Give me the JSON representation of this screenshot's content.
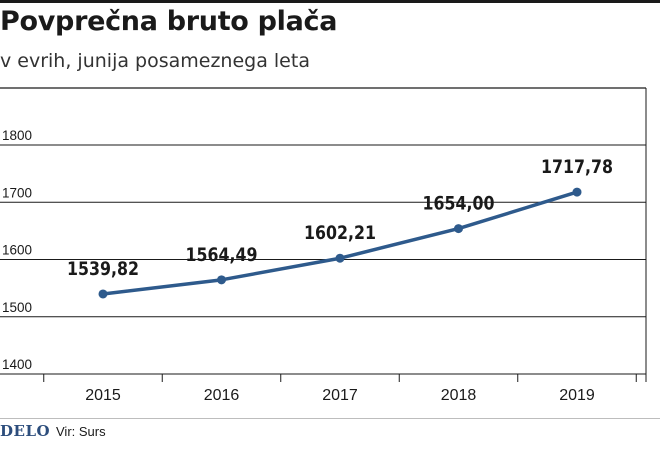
{
  "header": {
    "title": "Povprečna bruto plača",
    "subtitle": "v evrih, junija posameznega leta"
  },
  "footer": {
    "logo": "DELO",
    "source": "Vir: Surs"
  },
  "colors": {
    "line": "#2e5a8c",
    "grid": "#1a1a1a"
  },
  "chart_data": {
    "type": "line",
    "title": "Povprečna bruto plača",
    "subtitle": "v evrih, junija posameznega leta",
    "categories": [
      "2015",
      "2016",
      "2017",
      "2018",
      "2019"
    ],
    "series": [
      {
        "values": [
          1539.82,
          1564.49,
          1602.21,
          1654.0,
          1717.78
        ],
        "labels": [
          "1539,82",
          "1564,49",
          "1602,21",
          "1654,00",
          "1717,78"
        ]
      }
    ],
    "yticks": [
      1400,
      1500,
      1600,
      1700,
      1800
    ],
    "ytick_labels": [
      "1400",
      "1500",
      "1600",
      "1700",
      "1800"
    ],
    "ylim": [
      1400,
      1800
    ],
    "grid": true
  }
}
